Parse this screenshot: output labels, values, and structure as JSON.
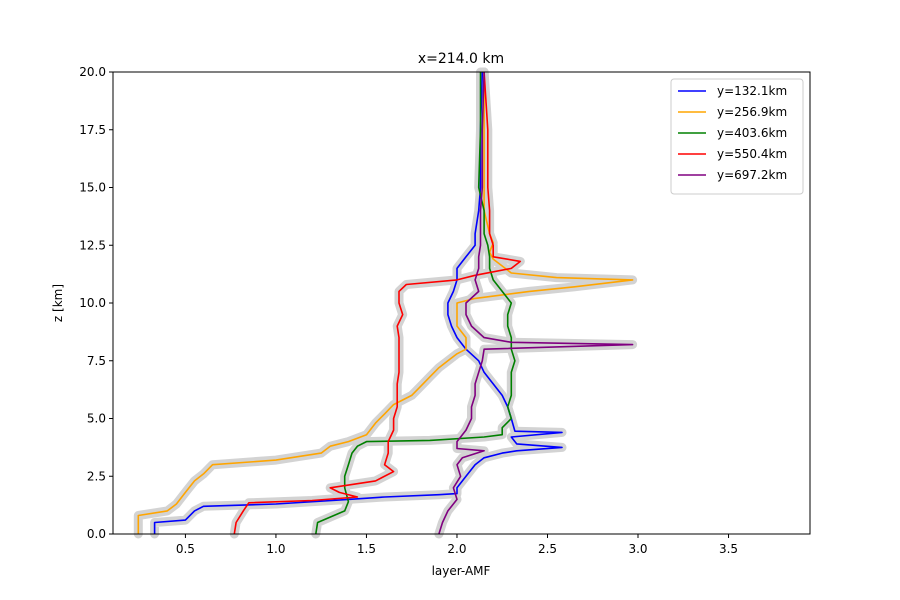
{
  "chart_data": {
    "type": "line",
    "title": "x=214.0 km",
    "xlabel": "layer-AMF",
    "ylabel": "z [km]",
    "xlim": [
      0.1,
      3.95
    ],
    "ylim": [
      0,
      20
    ],
    "xticks": [
      0.5,
      1.0,
      1.5,
      2.0,
      2.5,
      3.0,
      3.5
    ],
    "xtick_labels": [
      "0.5",
      "1.0",
      "1.5",
      "2.0",
      "2.5",
      "3.0",
      "3.5"
    ],
    "yticks": [
      0,
      2.5,
      5,
      7.5,
      10,
      12.5,
      15,
      17.5,
      20
    ],
    "ytick_labels": [
      "0.0",
      "2.5",
      "5.0",
      "7.5",
      "10.0",
      "12.5",
      "15.0",
      "17.5",
      "20.0"
    ],
    "grid": false,
    "legend_position": "top-right",
    "band_color": "#d3d3d3",
    "series": [
      {
        "name": "y=132.1km",
        "color": "#0000ff",
        "points": [
          [
            0.33,
            0.0
          ],
          [
            0.33,
            0.5
          ],
          [
            0.5,
            0.6
          ],
          [
            0.55,
            1.0
          ],
          [
            0.6,
            1.2
          ],
          [
            1.0,
            1.3
          ],
          [
            1.4,
            1.5
          ],
          [
            1.6,
            1.6
          ],
          [
            1.9,
            1.7
          ],
          [
            2.0,
            1.75
          ],
          [
            2.0,
            2.0
          ],
          [
            2.05,
            2.5
          ],
          [
            2.1,
            3.0
          ],
          [
            2.15,
            3.3
          ],
          [
            2.25,
            3.5
          ],
          [
            2.33,
            3.6
          ],
          [
            2.58,
            3.75
          ],
          [
            2.33,
            3.9
          ],
          [
            2.3,
            4.2
          ],
          [
            2.58,
            4.4
          ],
          [
            2.32,
            4.45
          ],
          [
            2.3,
            5.0
          ],
          [
            2.28,
            5.5
          ],
          [
            2.25,
            6.0
          ],
          [
            2.2,
            6.5
          ],
          [
            2.15,
            7.0
          ],
          [
            2.12,
            7.5
          ],
          [
            2.05,
            8.0
          ],
          [
            2.0,
            8.5
          ],
          [
            1.97,
            9.0
          ],
          [
            1.95,
            9.5
          ],
          [
            1.95,
            10.0
          ],
          [
            1.98,
            10.5
          ],
          [
            2.0,
            11.0
          ],
          [
            2.0,
            11.5
          ],
          [
            2.05,
            12.0
          ],
          [
            2.1,
            12.5
          ],
          [
            2.1,
            13.0
          ],
          [
            2.12,
            14.0
          ],
          [
            2.13,
            15.0
          ],
          [
            2.13,
            17.5
          ],
          [
            2.14,
            20.0
          ]
        ]
      },
      {
        "name": "y=256.9km",
        "color": "#ffa500",
        "points": [
          [
            0.24,
            0.0
          ],
          [
            0.24,
            0.8
          ],
          [
            0.4,
            1.0
          ],
          [
            0.45,
            1.3
          ],
          [
            0.5,
            1.8
          ],
          [
            0.55,
            2.3
          ],
          [
            0.6,
            2.6
          ],
          [
            0.65,
            3.0
          ],
          [
            1.0,
            3.2
          ],
          [
            1.25,
            3.5
          ],
          [
            1.3,
            3.8
          ],
          [
            1.4,
            4.0
          ],
          [
            1.5,
            4.3
          ],
          [
            1.55,
            4.8
          ],
          [
            1.6,
            5.2
          ],
          [
            1.65,
            5.6
          ],
          [
            1.75,
            6.0
          ],
          [
            1.8,
            6.4
          ],
          [
            1.85,
            6.8
          ],
          [
            1.9,
            7.2
          ],
          [
            1.95,
            7.5
          ],
          [
            2.0,
            7.8
          ],
          [
            2.05,
            8.0
          ],
          [
            2.05,
            8.5
          ],
          [
            2.0,
            9.0
          ],
          [
            2.0,
            9.5
          ],
          [
            2.0,
            10.0
          ],
          [
            2.1,
            10.2
          ],
          [
            2.4,
            10.5
          ],
          [
            2.65,
            10.7
          ],
          [
            2.97,
            11.0
          ],
          [
            2.55,
            11.1
          ],
          [
            2.3,
            11.3
          ],
          [
            2.25,
            11.6
          ],
          [
            2.2,
            11.9
          ],
          [
            2.18,
            12.2
          ],
          [
            2.2,
            12.6
          ],
          [
            2.18,
            13.0
          ],
          [
            2.15,
            14.0
          ],
          [
            2.15,
            15.0
          ],
          [
            2.15,
            17.5
          ],
          [
            2.15,
            20.0
          ]
        ]
      },
      {
        "name": "y=403.6km",
        "color": "#008000",
        "points": [
          [
            1.22,
            0.0
          ],
          [
            1.23,
            0.5
          ],
          [
            1.38,
            1.0
          ],
          [
            1.4,
            1.4
          ],
          [
            1.38,
            2.0
          ],
          [
            1.38,
            2.5
          ],
          [
            1.4,
            3.0
          ],
          [
            1.42,
            3.5
          ],
          [
            1.45,
            3.8
          ],
          [
            1.5,
            4.0
          ],
          [
            1.85,
            4.05
          ],
          [
            2.15,
            4.2
          ],
          [
            2.25,
            4.3
          ],
          [
            2.25,
            4.6
          ],
          [
            2.3,
            5.0
          ],
          [
            2.28,
            5.5
          ],
          [
            2.3,
            6.0
          ],
          [
            2.3,
            6.5
          ],
          [
            2.3,
            7.0
          ],
          [
            2.32,
            7.5
          ],
          [
            2.3,
            8.0
          ],
          [
            2.3,
            8.5
          ],
          [
            2.28,
            9.0
          ],
          [
            2.28,
            9.5
          ],
          [
            2.3,
            10.0
          ],
          [
            2.25,
            10.5
          ],
          [
            2.2,
            11.0
          ],
          [
            2.18,
            11.5
          ],
          [
            2.18,
            12.0
          ],
          [
            2.17,
            12.5
          ],
          [
            2.15,
            13.0
          ],
          [
            2.15,
            14.0
          ],
          [
            2.12,
            15.0
          ],
          [
            2.13,
            17.5
          ],
          [
            2.13,
            20.0
          ]
        ]
      },
      {
        "name": "y=550.4km",
        "color": "#ff0000",
        "points": [
          [
            0.77,
            0.0
          ],
          [
            0.78,
            0.5
          ],
          [
            0.82,
            1.0
          ],
          [
            0.85,
            1.35
          ],
          [
            1.2,
            1.45
          ],
          [
            1.45,
            1.6
          ],
          [
            1.35,
            1.8
          ],
          [
            1.3,
            2.0
          ],
          [
            1.55,
            2.3
          ],
          [
            1.65,
            2.7
          ],
          [
            1.6,
            3.0
          ],
          [
            1.62,
            3.5
          ],
          [
            1.62,
            4.0
          ],
          [
            1.65,
            4.5
          ],
          [
            1.65,
            5.0
          ],
          [
            1.67,
            5.5
          ],
          [
            1.67,
            6.0
          ],
          [
            1.67,
            6.5
          ],
          [
            1.68,
            7.0
          ],
          [
            1.68,
            7.5
          ],
          [
            1.68,
            8.0
          ],
          [
            1.68,
            8.5
          ],
          [
            1.67,
            9.0
          ],
          [
            1.7,
            9.5
          ],
          [
            1.68,
            10.0
          ],
          [
            1.68,
            10.5
          ],
          [
            1.72,
            10.8
          ],
          [
            2.0,
            11.0
          ],
          [
            2.1,
            11.2
          ],
          [
            2.3,
            11.5
          ],
          [
            2.35,
            11.8
          ],
          [
            2.2,
            12.0
          ],
          [
            2.2,
            12.5
          ],
          [
            2.18,
            13.0
          ],
          [
            2.18,
            14.0
          ],
          [
            2.17,
            15.0
          ],
          [
            2.17,
            17.5
          ],
          [
            2.15,
            20.0
          ]
        ]
      },
      {
        "name": "y=697.2km",
        "color": "#800080",
        "points": [
          [
            1.9,
            0.0
          ],
          [
            1.92,
            0.5
          ],
          [
            1.95,
            1.0
          ],
          [
            2.0,
            1.5
          ],
          [
            1.98,
            2.0
          ],
          [
            2.02,
            2.5
          ],
          [
            2.0,
            3.0
          ],
          [
            2.03,
            3.3
          ],
          [
            2.15,
            3.6
          ],
          [
            2.0,
            3.7
          ],
          [
            2.0,
            4.0
          ],
          [
            2.05,
            4.5
          ],
          [
            2.08,
            5.0
          ],
          [
            2.08,
            5.5
          ],
          [
            2.1,
            6.0
          ],
          [
            2.1,
            6.5
          ],
          [
            2.12,
            7.0
          ],
          [
            2.14,
            7.5
          ],
          [
            2.15,
            8.0
          ],
          [
            2.97,
            8.2
          ],
          [
            2.3,
            8.3
          ],
          [
            2.15,
            8.5
          ],
          [
            2.08,
            9.0
          ],
          [
            2.05,
            9.5
          ],
          [
            2.05,
            10.0
          ],
          [
            2.12,
            10.5
          ],
          [
            2.1,
            11.0
          ],
          [
            2.12,
            11.5
          ],
          [
            2.12,
            12.0
          ],
          [
            2.13,
            12.5
          ],
          [
            2.13,
            13.0
          ],
          [
            2.13,
            14.0
          ],
          [
            2.14,
            15.0
          ],
          [
            2.14,
            17.5
          ],
          [
            2.15,
            20.0
          ]
        ]
      }
    ]
  }
}
